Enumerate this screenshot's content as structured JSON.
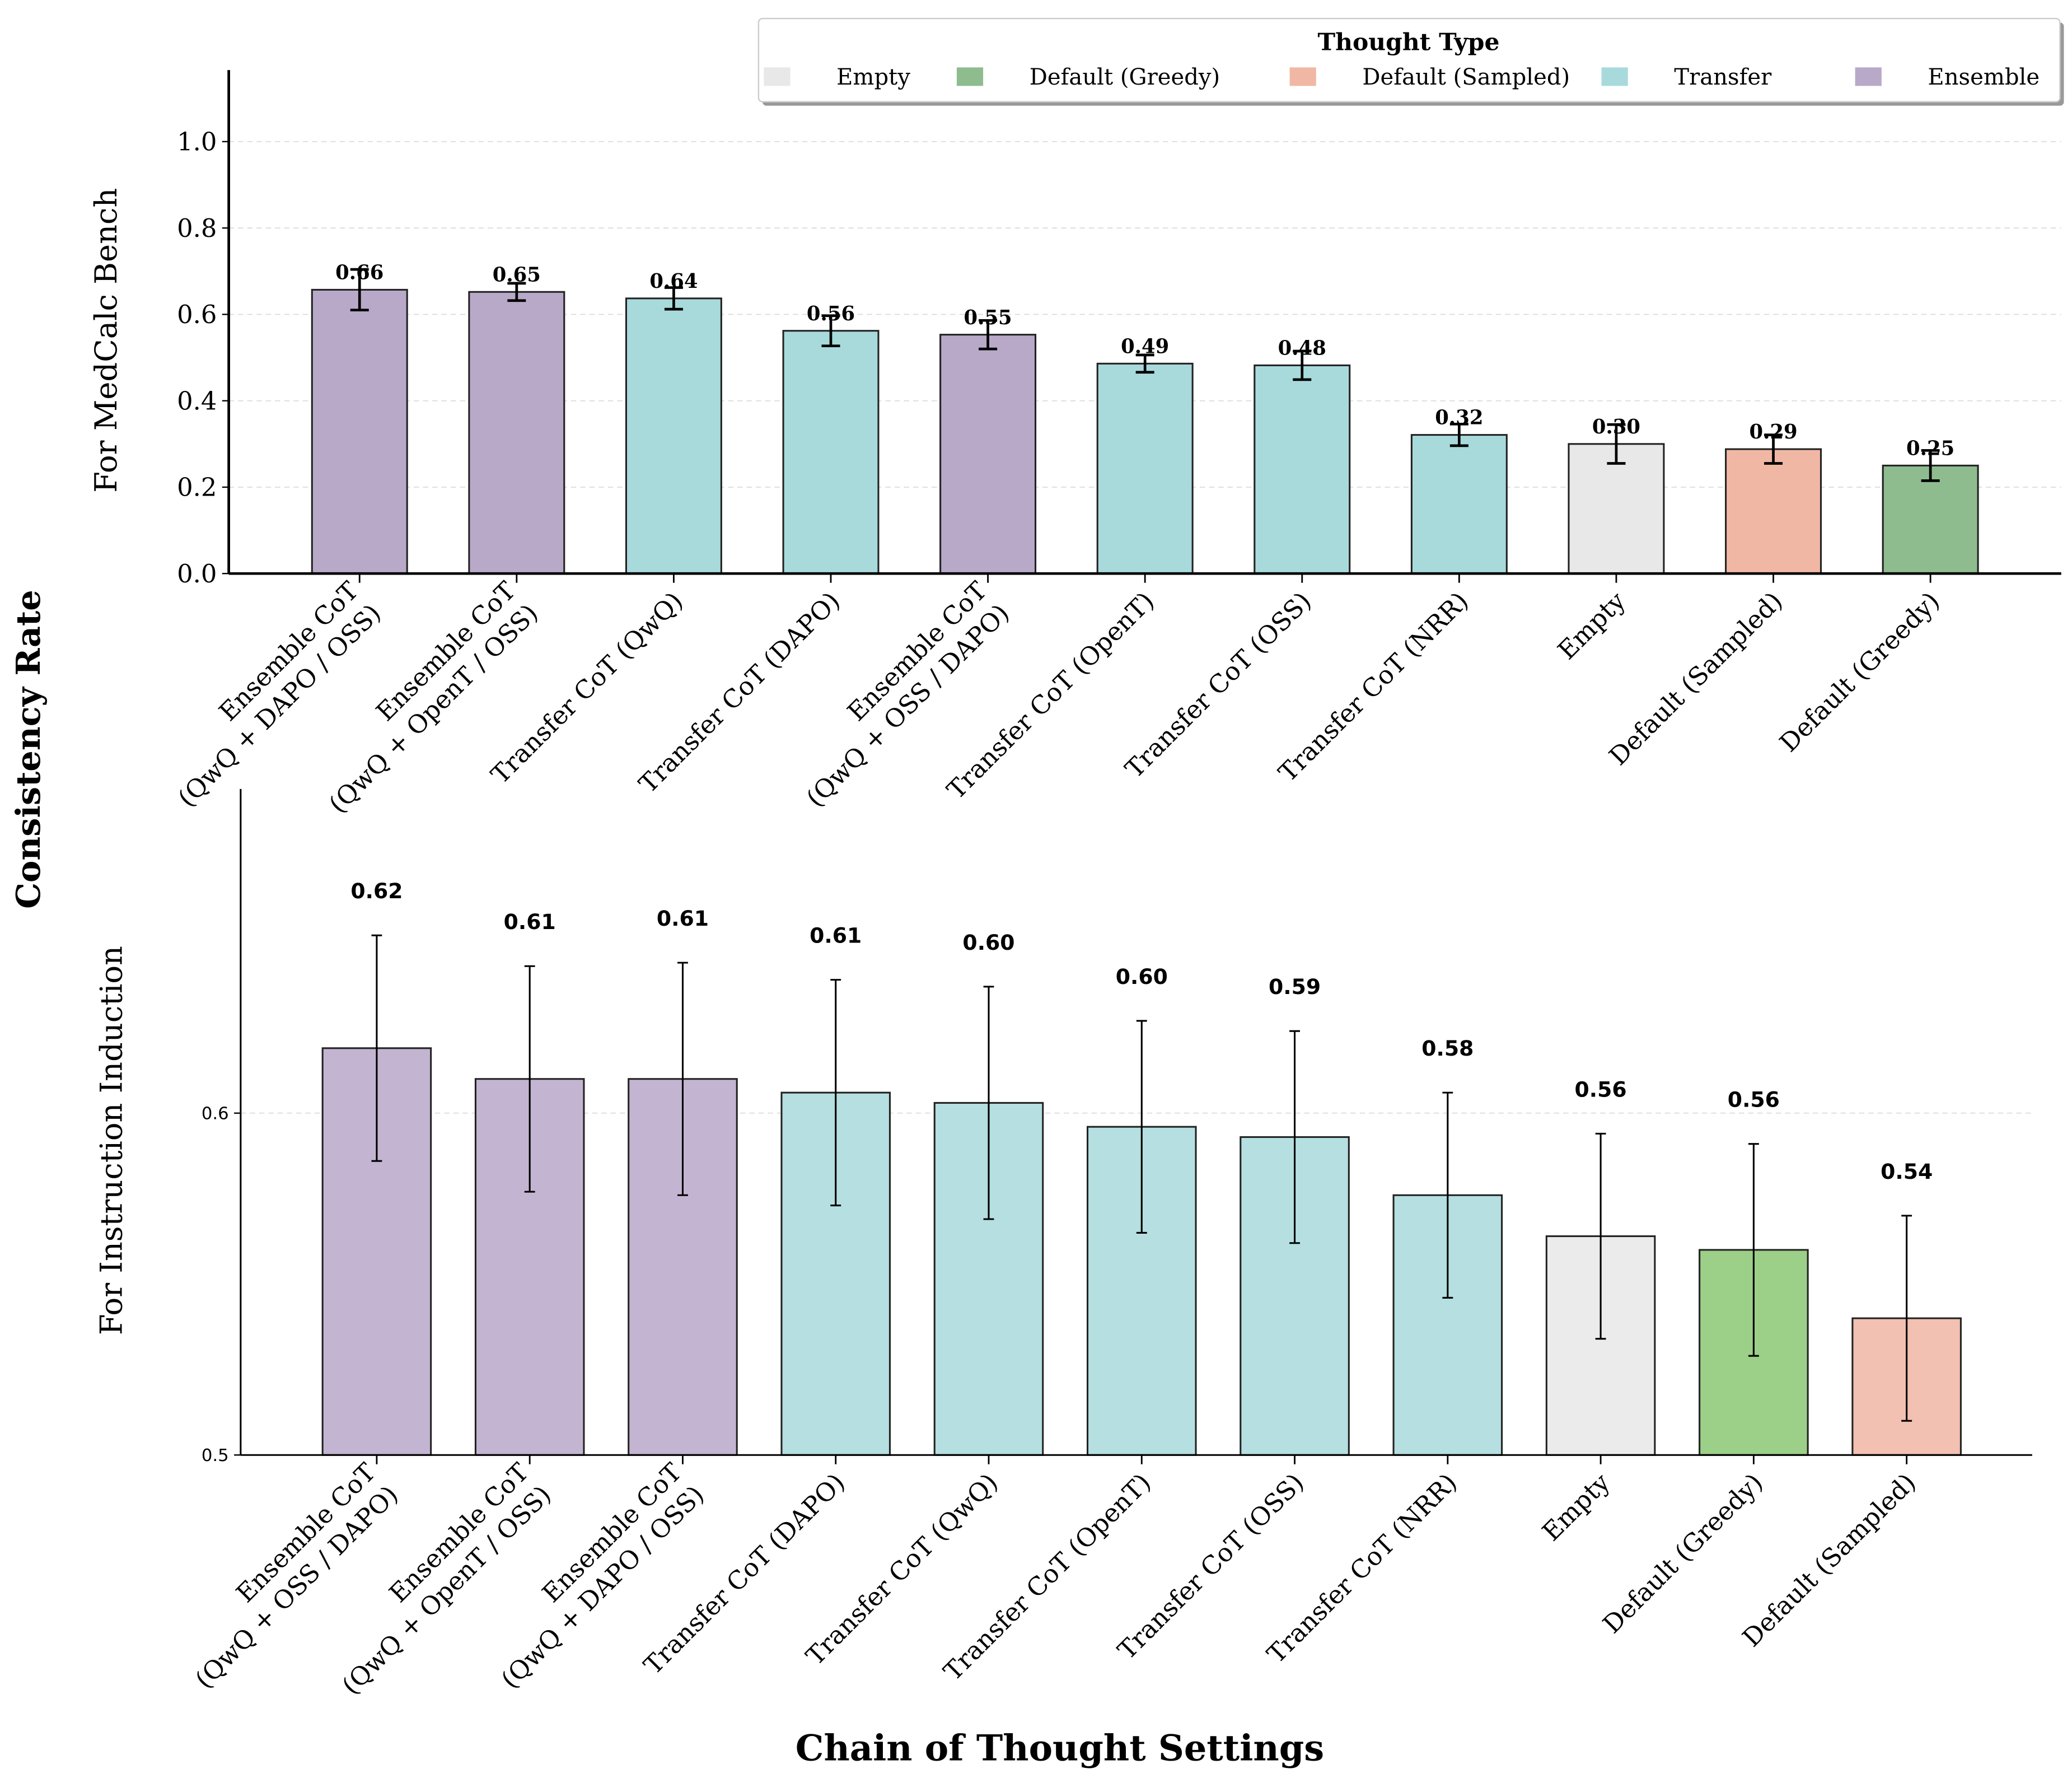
{
  "figure": {
    "shared_ylabel": "Consistency Rate",
    "shared_xlabel": "Chain of Thought Settings"
  },
  "legend": {
    "title": "Thought Type",
    "placement": "top-right",
    "entries": [
      {
        "label": "Empty",
        "color": "#e8e8e8"
      },
      {
        "label": "Default (Greedy)",
        "color": "#8fbc8f"
      },
      {
        "label": "Default (Sampled)",
        "color": "#f0b8a4"
      },
      {
        "label": "Transfer",
        "color": "#a8dadc"
      },
      {
        "label": "Ensemble",
        "color": "#b8a9c9"
      }
    ]
  },
  "chart_data": [
    {
      "type": "bar",
      "ylabel": "For MedCalc Bench",
      "ylim": [
        0,
        1.08
      ],
      "yticks": [
        "0.0",
        "0.2",
        "0.4",
        "0.6",
        "0.8",
        "1.0"
      ],
      "grid": true,
      "categories": [
        [
          "Ensemble CoT",
          "(QwQ + DAPO / OSS)"
        ],
        [
          "Ensemble CoT",
          "(QwQ + OpenT / OSS)"
        ],
        [
          "Transfer CoT (QwQ)"
        ],
        [
          "Transfer CoT (DAPO)"
        ],
        [
          "Ensemble CoT",
          "(QwQ + OSS / DAPO)"
        ],
        [
          "Transfer CoT (OpenT)"
        ],
        [
          "Transfer CoT (OSS)"
        ],
        [
          "Transfer CoT (NRR)"
        ],
        [
          "Empty"
        ],
        [
          "Default (Sampled)"
        ],
        [
          "Default (Greedy)"
        ]
      ],
      "types": [
        "Ensemble",
        "Ensemble",
        "Transfer",
        "Transfer",
        "Ensemble",
        "Transfer",
        "Transfer",
        "Transfer",
        "Empty",
        "Default (Sampled)",
        "Default (Greedy)"
      ],
      "values": [
        0.657,
        0.652,
        0.637,
        0.562,
        0.553,
        0.486,
        0.482,
        0.321,
        0.3,
        0.288,
        0.25
      ],
      "errors": [
        0.047,
        0.02,
        0.025,
        0.035,
        0.033,
        0.02,
        0.033,
        0.025,
        0.045,
        0.033,
        0.035
      ],
      "data_labels": [
        "0.66",
        "0.65",
        "0.64",
        "0.56",
        "0.55",
        "0.49",
        "0.48",
        "0.32",
        "0.30",
        "0.29",
        "0.25"
      ]
    },
    {
      "type": "bar",
      "ylabel": "For Instruction Induction",
      "ylim": [
        0.5,
        0.684
      ],
      "yticks": [
        "0.5",
        "0.6"
      ],
      "grid": true,
      "categories": [
        [
          "Ensemble CoT",
          "(QwQ + OSS / DAPO)"
        ],
        [
          "Ensemble CoT",
          "(QwQ + OpenT / OSS)"
        ],
        [
          "Ensemble CoT",
          "(QwQ + DAPO / OSS)"
        ],
        [
          "Transfer CoT (DAPO)"
        ],
        [
          "Transfer CoT (QwQ)"
        ],
        [
          "Transfer CoT (OpenT)"
        ],
        [
          "Transfer CoT (OSS)"
        ],
        [
          "Transfer CoT (NRR)"
        ],
        [
          "Empty"
        ],
        [
          "Default (Greedy)"
        ],
        [
          "Default (Sampled)"
        ]
      ],
      "types": [
        "Ensemble",
        "Ensemble",
        "Ensemble",
        "Transfer",
        "Transfer",
        "Transfer",
        "Transfer",
        "Transfer",
        "Empty",
        "Default (Greedy)",
        "Default (Sampled)"
      ],
      "values": [
        0.619,
        0.61,
        0.61,
        0.606,
        0.603,
        0.596,
        0.593,
        0.576,
        0.564,
        0.56,
        0.54
      ],
      "errors": [
        0.033,
        0.033,
        0.034,
        0.033,
        0.034,
        0.031,
        0.031,
        0.03,
        0.03,
        0.031,
        0.03
      ],
      "data_labels": [
        "0.62",
        "0.61",
        "0.61",
        "0.61",
        "0.60",
        "0.60",
        "0.59",
        "0.58",
        "0.56",
        "0.56",
        "0.54"
      ],
      "colors": {
        "Ensemble": "#c3b5d1",
        "Transfer": "#b5dfe0",
        "Empty": "#ebebeb",
        "Default (Greedy)": "#9ccf88",
        "Default (Sampled)": "#f2c1b1"
      }
    }
  ]
}
